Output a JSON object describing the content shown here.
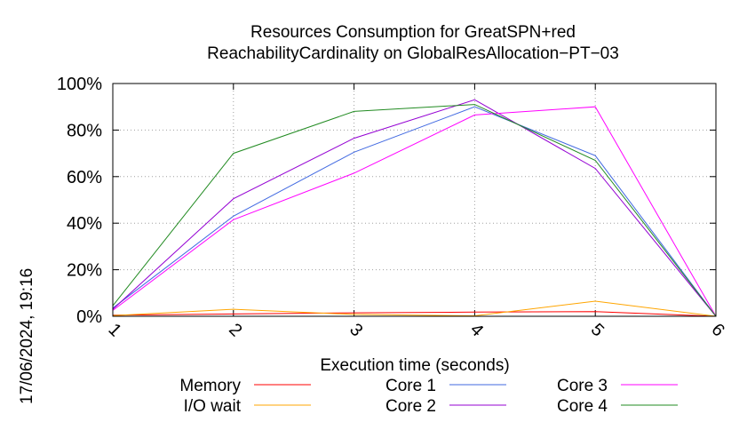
{
  "chart_data": {
    "type": "line",
    "title_line1": "Resources Consumption for GreatSPN+red",
    "title_line2": "ReachabilityCardinality on GlobalResAllocation−PT−03",
    "xlabel": "Execution time (seconds)",
    "ylabel": "",
    "x": [
      1,
      2,
      3,
      4,
      5,
      6
    ],
    "xlim": [
      1,
      6
    ],
    "ylim": [
      0,
      100
    ],
    "x_tick_labels": [
      "1",
      "2",
      "3",
      "4",
      "5",
      "6"
    ],
    "y_tick_labels": [
      "0%",
      "20%",
      "40%",
      "60%",
      "80%",
      "100%"
    ],
    "y_ticks": [
      0,
      20,
      40,
      60,
      80,
      100
    ],
    "grid": true,
    "legend_position": "bottom",
    "timestamp": "17/06/2024, 19:16",
    "series": [
      {
        "name": "Memory",
        "color": "#ff0000",
        "values": [
          0.5,
          1.0,
          1.5,
          1.8,
          2.0,
          0
        ]
      },
      {
        "name": "I/O wait",
        "color": "#ffa500",
        "values": [
          0.3,
          3.0,
          0.8,
          0.2,
          6.5,
          0
        ]
      },
      {
        "name": "Core 1",
        "color": "#4169e1",
        "values": [
          3.5,
          43.0,
          70.5,
          90.0,
          69.0,
          0
        ]
      },
      {
        "name": "Core 2",
        "color": "#9400d3",
        "values": [
          3.0,
          50.5,
          76.5,
          93.0,
          63.5,
          0
        ]
      },
      {
        "name": "Core 3",
        "color": "#ff00ff",
        "values": [
          2.5,
          41.5,
          61.5,
          86.5,
          90.0,
          0
        ]
      },
      {
        "name": "Core 4",
        "color": "#228b22",
        "values": [
          4.5,
          70.0,
          88.0,
          91.0,
          67.0,
          0
        ]
      }
    ]
  }
}
